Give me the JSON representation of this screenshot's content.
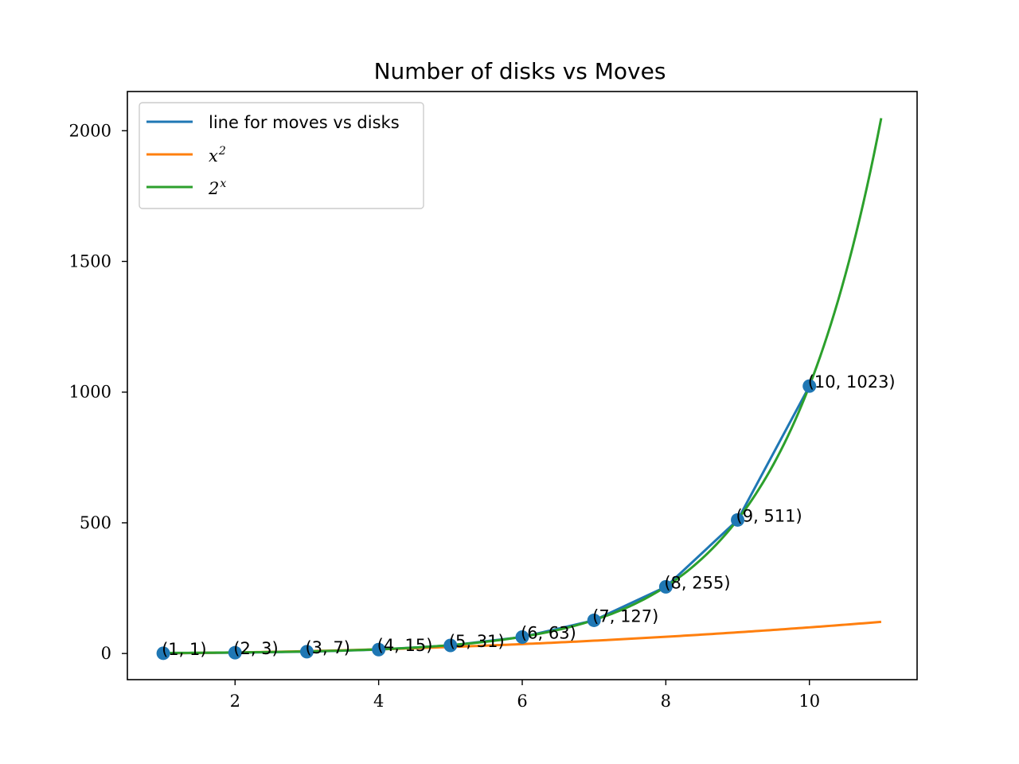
{
  "chart_data": {
    "type": "line",
    "title": "Number of disks vs Moves",
    "xlabel": "",
    "ylabel": "",
    "xlim": [
      0.5,
      11.5
    ],
    "ylim": [
      -100,
      2150
    ],
    "x_ticks": [
      2,
      4,
      6,
      8,
      10
    ],
    "y_ticks": [
      0,
      500,
      1000,
      1500,
      2000
    ],
    "grid": false,
    "legend_position": "top-left",
    "series": [
      {
        "name": "line for moves vs disks",
        "color": "#1f77b4",
        "marker": "circle",
        "x": [
          1,
          2,
          3,
          4,
          5,
          6,
          7,
          8,
          9,
          10
        ],
        "y": [
          1,
          3,
          7,
          15,
          31,
          63,
          127,
          255,
          511,
          1023
        ]
      },
      {
        "name": "x^2",
        "legend_base": "x",
        "legend_exp": "2",
        "color": "#ff7f0e",
        "function": "x^2",
        "x_range": [
          1,
          11
        ]
      },
      {
        "name": "2^x",
        "legend_base": "2",
        "legend_exp": "x",
        "color": "#2ca02c",
        "function": "2^x",
        "x_range": [
          1,
          11
        ]
      }
    ],
    "annotations": [
      {
        "x": 1,
        "y": 1,
        "text": "(1, 1)"
      },
      {
        "x": 2,
        "y": 3,
        "text": "(2, 3)"
      },
      {
        "x": 3,
        "y": 7,
        "text": "(3, 7)"
      },
      {
        "x": 4,
        "y": 15,
        "text": "(4, 15)"
      },
      {
        "x": 5,
        "y": 31,
        "text": "(5, 31)"
      },
      {
        "x": 6,
        "y": 63,
        "text": "(6, 63)"
      },
      {
        "x": 7,
        "y": 127,
        "text": "(7, 127)"
      },
      {
        "x": 8,
        "y": 255,
        "text": "(8, 255)"
      },
      {
        "x": 9,
        "y": 511,
        "text": "(9, 511)"
      },
      {
        "x": 10,
        "y": 1023,
        "text": "(10, 1023)"
      }
    ]
  }
}
